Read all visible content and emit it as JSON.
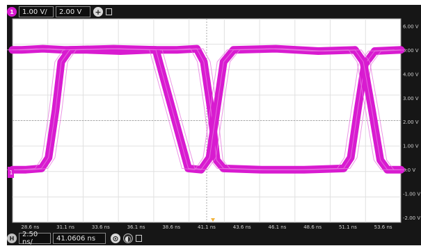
{
  "channel": {
    "badge": "1",
    "scale": "1.00 V/",
    "offset": "2.00 V",
    "color": "#d81bd0"
  },
  "horizontal": {
    "badge": "H",
    "scale": "2.50 ns/",
    "position": "41.0606 ns"
  },
  "y_tick_labels": [
    "6.00 V",
    "5.00 V",
    "4.00 V",
    "3.00 V",
    "2.00 V",
    "1.00 V",
    "0.0 V",
    "-1.00 V",
    "-2.00 V"
  ],
  "x_tick_labels": [
    "28.6 ns",
    "31.1 ns",
    "33.6 ns",
    "36.1 ns",
    "38.6 ns",
    "41.1 ns",
    "43.6 ns",
    "46.1 ns",
    "48.6 ns",
    "51.1 ns",
    "53.6 ns"
  ],
  "chart_data": {
    "type": "line",
    "x_unit": "ns",
    "y_unit": "V",
    "xlim": [
      27.35,
      54.85
    ],
    "ylim": [
      -2.2,
      6.3
    ],
    "series": [
      {
        "x": [
          27.35,
          28.0,
          29.5,
          31.0,
          32.6,
          35.0,
          37.0,
          39.0,
          40.4,
          40.9,
          41.4,
          41.8,
          42.3,
          45.0,
          48.0,
          50.8,
          51.3,
          51.8,
          52.3,
          53.0,
          54.85
        ],
        "y": [
          5.0,
          5.0,
          5.05,
          5.0,
          5.0,
          4.95,
          5.0,
          5.0,
          5.05,
          4.5,
          2.5,
          0.4,
          0.05,
          0.0,
          0.0,
          0.05,
          0.5,
          2.5,
          4.4,
          4.95,
          5.0
        ]
      },
      {
        "x": [
          27.35,
          28.3,
          29.4,
          29.9,
          30.4,
          30.8,
          31.4,
          34.5,
          37.5,
          39.8,
          40.7,
          41.3,
          41.8,
          42.3,
          43.0,
          46.0,
          49.0,
          51.6,
          52.2,
          52.8,
          53.4,
          53.9,
          54.85
        ],
        "y": [
          0.0,
          0.0,
          0.05,
          0.5,
          2.5,
          4.5,
          5.0,
          5.05,
          5.0,
          0.05,
          0.0,
          0.5,
          2.5,
          4.5,
          5.0,
          5.05,
          4.95,
          5.0,
          4.5,
          2.5,
          0.4,
          0.0,
          0.0
        ]
      }
    ]
  }
}
